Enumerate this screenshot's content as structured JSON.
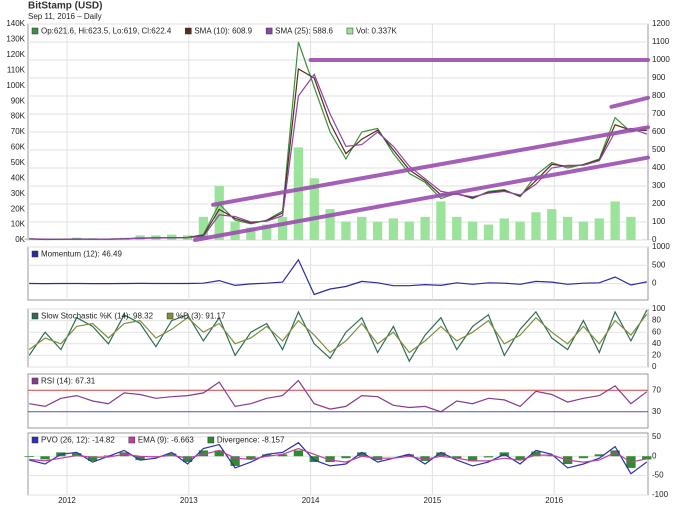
{
  "chart_data": [
    {
      "type": "line",
      "title": "BitStamp (USD)",
      "subtitle": "Sep 11, 2016 – Daily",
      "x": [
        2011.69,
        2011.82,
        2011.95,
        2012.08,
        2012.21,
        2012.34,
        2012.47,
        2012.6,
        2012.73,
        2012.86,
        2012.99,
        2013.12,
        2013.25,
        2013.38,
        2013.51,
        2013.64,
        2013.77,
        2013.9,
        2014.03,
        2014.16,
        2014.29,
        2014.42,
        2014.55,
        2014.68,
        2014.81,
        2014.94,
        2015.07,
        2015.2,
        2015.33,
        2015.46,
        2015.59,
        2015.72,
        2015.85,
        2015.98,
        2016.11,
        2016.24,
        2016.37,
        2016.5,
        2016.63,
        2016.76
      ],
      "xlim": [
        2011.68,
        2016.77
      ],
      "xticks": [
        2012,
        2013,
        2014,
        2015,
        2016
      ],
      "ylim": [
        0,
        1200
      ],
      "yticks": [
        0,
        100,
        200,
        300,
        400,
        500,
        600,
        700,
        800,
        900,
        1000,
        1100,
        1200
      ],
      "y2lim": [
        0,
        140000
      ],
      "y2ticks": [
        {
          "value": 0,
          "label": "0K"
        },
        {
          "value": 10000,
          "label": "10K"
        },
        {
          "value": 20000,
          "label": "20K"
        },
        {
          "value": 30000,
          "label": "30K"
        },
        {
          "value": 40000,
          "label": "40K"
        },
        {
          "value": 50000,
          "label": "50K"
        },
        {
          "value": 60000,
          "label": "60K"
        },
        {
          "value": 70000,
          "label": "70K"
        },
        {
          "value": 80000,
          "label": "80K"
        },
        {
          "value": 90000,
          "label": "90K"
        },
        {
          "value": 100000,
          "label": "100K"
        },
        {
          "value": 110000,
          "label": "110K"
        },
        {
          "value": 120000,
          "label": "120K"
        },
        {
          "value": 130000,
          "label": "130K"
        },
        {
          "value": 140000,
          "label": "140K"
        }
      ],
      "grid": true,
      "series": [
        {
          "name": "Vol: 0.337K",
          "type": "bar",
          "axis": "y2",
          "color": "#9be39b",
          "values": [
            1000,
            500,
            800,
            1500,
            1200,
            1000,
            1500,
            3000,
            3000,
            3500,
            3000,
            15000,
            35000,
            12000,
            8000,
            10000,
            15000,
            60000,
            40000,
            20000,
            12000,
            15000,
            12000,
            14000,
            12000,
            15000,
            25000,
            15000,
            12000,
            10000,
            14000,
            12000,
            18000,
            20000,
            15000,
            12000,
            14000,
            25000,
            15000,
            337
          ]
        },
        {
          "name": "Op:621.6, Hi:623.5, Lo:619, Cl:622.4",
          "type": "line",
          "color": "#3c8f3c",
          "values": [
            6,
            3,
            4,
            6,
            5,
            5,
            7,
            11,
            12,
            13,
            14,
            30,
            200,
            110,
            90,
            110,
            160,
            1100,
            850,
            600,
            450,
            600,
            620,
            480,
            370,
            320,
            230,
            260,
            230,
            270,
            280,
            240,
            360,
            430,
            400,
            420,
            450,
            680,
            600,
            622.4
          ]
        },
        {
          "name": "SMA (10): 608.9",
          "type": "line",
          "color": "#5a2d1a",
          "values": [
            6,
            4,
            4,
            5,
            5,
            5,
            6,
            10,
            12,
            13,
            14,
            25,
            170,
            120,
            95,
            108,
            150,
            950,
            900,
            650,
            480,
            560,
            610,
            500,
            390,
            330,
            250,
            255,
            235,
            265,
            275,
            245,
            330,
            420,
            410,
            418,
            445,
            640,
            610,
            608.9
          ]
        },
        {
          "name": "SMA (25): 588.6",
          "type": "line",
          "color": "#8a46a8",
          "values": [
            6,
            5,
            4,
            5,
            5,
            5,
            6,
            9,
            11,
            12,
            13,
            20,
            140,
            130,
            100,
            105,
            135,
            800,
            920,
            700,
            520,
            530,
            600,
            520,
            410,
            340,
            270,
            255,
            240,
            260,
            270,
            250,
            310,
            400,
            415,
            415,
            440,
            600,
            620,
            588.6
          ]
        }
      ],
      "trend_lines": [
        {
          "x": [
            2013.05,
            2016.77
          ],
          "y": [
            0,
            458
          ],
          "color": "#9b4fb0"
        },
        {
          "x": [
            2013.2,
            2016.77
          ],
          "y": [
            196,
            626
          ],
          "color": "#9b4fb0"
        },
        {
          "x": [
            2014.0,
            2016.77
          ],
          "y": [
            1000,
            1000
          ],
          "color": "#9b4fb0"
        },
        {
          "x": [
            2016.47,
            2016.77
          ],
          "y": [
            740,
            790
          ],
          "color": "#9b4fb0"
        }
      ]
    },
    {
      "type": "line",
      "x": [
        2011.69,
        2011.82,
        2011.95,
        2012.08,
        2012.21,
        2012.34,
        2012.47,
        2012.6,
        2012.73,
        2012.86,
        2012.99,
        2013.12,
        2013.25,
        2013.38,
        2013.51,
        2013.64,
        2013.77,
        2013.9,
        2014.03,
        2014.16,
        2014.29,
        2014.42,
        2014.55,
        2014.68,
        2014.81,
        2014.94,
        2015.07,
        2015.2,
        2015.33,
        2015.46,
        2015.59,
        2015.72,
        2015.85,
        2015.98,
        2016.11,
        2016.24,
        2016.37,
        2016.5,
        2016.63,
        2016.76
      ],
      "xlim": [
        2011.68,
        2016.77
      ],
      "xticks": [
        2012,
        2013,
        2014,
        2015,
        2016
      ],
      "ylim": [
        -450,
        1000
      ],
      "yticks": [
        0,
        500,
        1000
      ],
      "grid": true,
      "series": [
        {
          "name": "Momentum (12): 46.49",
          "type": "line",
          "color": "#2a2aa0",
          "values": [
            1,
            -1,
            1,
            2,
            0,
            0,
            1,
            3,
            1,
            1,
            1,
            10,
            80,
            -50,
            -10,
            10,
            40,
            650,
            -300,
            -150,
            -80,
            60,
            20,
            -60,
            -60,
            -30,
            -50,
            20,
            -20,
            20,
            10,
            -20,
            60,
            40,
            -20,
            10,
            20,
            180,
            -40,
            46.49
          ]
        }
      ]
    },
    {
      "type": "line",
      "x": [
        2011.69,
        2011.82,
        2011.95,
        2012.08,
        2012.21,
        2012.34,
        2012.47,
        2012.6,
        2012.73,
        2012.86,
        2012.99,
        2013.12,
        2013.25,
        2013.38,
        2013.51,
        2013.64,
        2013.77,
        2013.9,
        2014.03,
        2014.16,
        2014.29,
        2014.42,
        2014.55,
        2014.68,
        2014.81,
        2014.94,
        2015.07,
        2015.2,
        2015.33,
        2015.46,
        2015.59,
        2015.72,
        2015.85,
        2015.98,
        2016.11,
        2016.24,
        2016.37,
        2016.5,
        2016.63,
        2016.76
      ],
      "xlim": [
        2011.68,
        2016.77
      ],
      "xticks": [
        2012,
        2013,
        2014,
        2015,
        2016
      ],
      "ylim": [
        0,
        100
      ],
      "yticks": [
        0,
        20,
        40,
        60,
        80,
        100
      ],
      "grid": true,
      "series": [
        {
          "name": "Slow Stochastic %K (14): 98.32",
          "type": "line",
          "color": "#2f6b57",
          "values": [
            20,
            60,
            30,
            85,
            70,
            40,
            90,
            75,
            35,
            80,
            90,
            45,
            85,
            20,
            60,
            75,
            30,
            95,
            40,
            15,
            60,
            85,
            25,
            70,
            10,
            55,
            85,
            30,
            70,
            90,
            20,
            65,
            95,
            50,
            30,
            80,
            25,
            95,
            45,
            98.32
          ]
        },
        {
          "name": "%D (3): 91.17",
          "type": "line",
          "color": "#7d8f3a",
          "values": [
            30,
            50,
            40,
            70,
            75,
            50,
            75,
            80,
            50,
            65,
            85,
            60,
            75,
            40,
            50,
            70,
            45,
            80,
            55,
            25,
            45,
            75,
            40,
            60,
            25,
            45,
            70,
            45,
            60,
            80,
            40,
            55,
            85,
            60,
            40,
            70,
            40,
            80,
            55,
            91.17
          ]
        }
      ]
    },
    {
      "type": "line",
      "x": [
        2011.69,
        2011.82,
        2011.95,
        2012.08,
        2012.21,
        2012.34,
        2012.47,
        2012.6,
        2012.73,
        2012.86,
        2012.99,
        2013.12,
        2013.25,
        2013.38,
        2013.51,
        2013.64,
        2013.77,
        2013.9,
        2014.03,
        2014.16,
        2014.29,
        2014.42,
        2014.55,
        2014.68,
        2014.81,
        2014.94,
        2015.07,
        2015.2,
        2015.33,
        2015.46,
        2015.59,
        2015.72,
        2015.85,
        2015.98,
        2016.11,
        2016.24,
        2016.37,
        2016.5,
        2016.63,
        2016.76
      ],
      "xlim": [
        2011.68,
        2016.77
      ],
      "xticks": [
        2012,
        2013,
        2014,
        2015,
        2016
      ],
      "ylim": [
        0,
        100
      ],
      "yticks": [
        30,
        70
      ],
      "ytick_colors": [
        "#5050c8",
        "#d04040"
      ],
      "grid": true,
      "series": [
        {
          "name": "RSI (14): 67.31",
          "type": "line",
          "color": "#8a3a8a",
          "values": [
            45,
            40,
            55,
            60,
            50,
            45,
            65,
            62,
            55,
            58,
            60,
            65,
            85,
            40,
            45,
            55,
            60,
            88,
            45,
            35,
            40,
            60,
            58,
            42,
            38,
            40,
            30,
            50,
            45,
            55,
            52,
            40,
            68,
            62,
            48,
            55,
            60,
            78,
            45,
            67.31
          ]
        }
      ]
    },
    {
      "type": "line",
      "xtick_labels": true,
      "x": [
        2011.69,
        2011.82,
        2011.95,
        2012.08,
        2012.21,
        2012.34,
        2012.47,
        2012.6,
        2012.73,
        2012.86,
        2012.99,
        2013.12,
        2013.25,
        2013.38,
        2013.51,
        2013.64,
        2013.77,
        2013.9,
        2014.03,
        2014.16,
        2014.29,
        2014.42,
        2014.55,
        2014.68,
        2014.81,
        2014.94,
        2015.07,
        2015.2,
        2015.33,
        2015.46,
        2015.59,
        2015.72,
        2015.85,
        2015.98,
        2016.11,
        2016.24,
        2016.37,
        2016.5,
        2016.63,
        2016.76
      ],
      "xlim": [
        2011.68,
        2016.77
      ],
      "xticks": [
        2012,
        2013,
        2014,
        2015,
        2016
      ],
      "ylim": [
        -100,
        60
      ],
      "yticks": [
        -100,
        -50,
        0,
        50
      ],
      "grid": true,
      "series": [
        {
          "name": "Divergence: -8.157",
          "type": "bar",
          "color": "#2e8b2e",
          "values": [
            -2,
            -8,
            10,
            8,
            -12,
            2,
            10,
            -10,
            -3,
            7,
            -15,
            15,
            15,
            -25,
            -7,
            5,
            5,
            15,
            -15,
            -15,
            -5,
            10,
            -10,
            0,
            5,
            -12,
            10,
            -5,
            -13,
            -3,
            10,
            -10,
            12,
            2,
            -20,
            -5,
            5,
            15,
            -30,
            -8.157
          ]
        },
        {
          "name": "PVO (26, 12): -14.82",
          "type": "line",
          "color": "#3030b0",
          "values": [
            -10,
            -20,
            5,
            10,
            -15,
            0,
            15,
            -10,
            -5,
            10,
            -20,
            20,
            30,
            -30,
            -15,
            5,
            10,
            35,
            -10,
            -25,
            -20,
            10,
            -15,
            -5,
            5,
            -20,
            10,
            -10,
            -25,
            -15,
            5,
            -20,
            15,
            5,
            -30,
            -20,
            -5,
            25,
            -45,
            -14.82
          ]
        },
        {
          "name": "EMA (9): -6.663",
          "type": "line",
          "color": "#c040a0",
          "values": [
            -8,
            -12,
            -5,
            2,
            -3,
            -2,
            5,
            0,
            -2,
            3,
            -5,
            5,
            15,
            -5,
            -8,
            0,
            5,
            20,
            5,
            -10,
            -15,
            0,
            -5,
            -5,
            0,
            -8,
            0,
            -5,
            -12,
            -12,
            -5,
            -10,
            3,
            3,
            -10,
            -15,
            -10,
            10,
            -15,
            -6.663
          ]
        }
      ]
    }
  ]
}
